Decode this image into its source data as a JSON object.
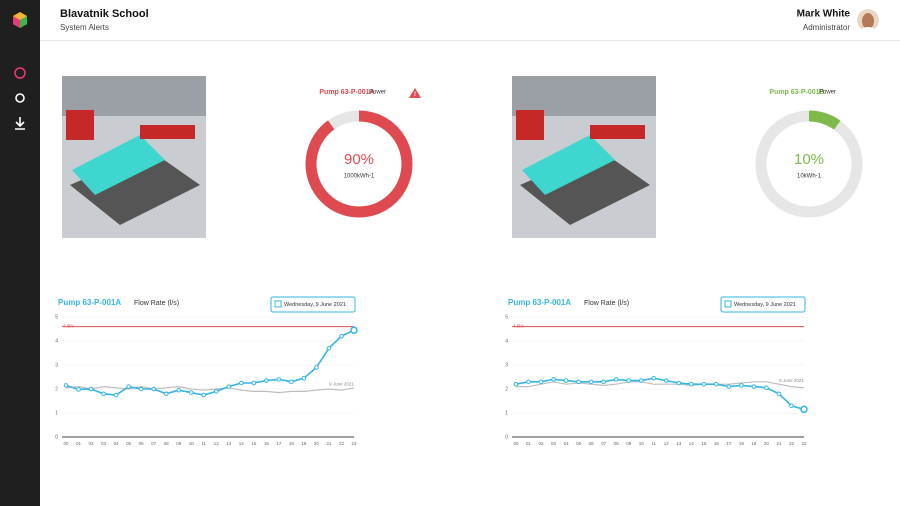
{
  "header": {
    "title": "Blavatnik School",
    "subtitle": "System Alerts",
    "user_name": "Mark White",
    "user_role": "Administrator"
  },
  "panels": [
    {
      "name": "Pump 63-P-001A",
      "metric": "Power",
      "value": 90,
      "value_label": "90%",
      "unit_text": "1000kWh-1",
      "color": "#de4a4f",
      "alert": true
    },
    {
      "name": "Pump 63-P-001B",
      "metric": "Power",
      "value": 10,
      "value_label": "10%",
      "unit_text": "10kWh-1",
      "color": "#7dba4a",
      "alert": false
    }
  ],
  "chart_data": [
    {
      "type": "line",
      "title": "Pump 63-P-001A",
      "subtitle": "Flow Rate (l/s)",
      "date": "Wednesday, 9 June 2021",
      "categories": [
        "00",
        "01",
        "02",
        "03",
        "04",
        "05",
        "06",
        "07",
        "08",
        "09",
        "10",
        "11",
        "12",
        "13",
        "14",
        "15",
        "16",
        "17",
        "18",
        "19",
        "20",
        "21",
        "22",
        "23"
      ],
      "ylim": [
        0,
        5
      ],
      "yticks": [
        0,
        1,
        2,
        3,
        4,
        5
      ],
      "grid": true,
      "threshold": 4.6,
      "threshold_label": "4.6l/s",
      "series": [
        {
          "name": "9 June 2021",
          "color": "#bdbdbd",
          "values": [
            2.05,
            2.1,
            2.0,
            2.1,
            2.05,
            2.0,
            2.1,
            2.0,
            2.05,
            2.1,
            2.0,
            1.95,
            2.0,
            2.05,
            1.95,
            1.9,
            1.9,
            1.85,
            1.9,
            1.9,
            1.95,
            2.0,
            1.95,
            2.05
          ]
        },
        {
          "color": "#33b5e5",
          "values": [
            2.15,
            1.98,
            2.0,
            1.8,
            1.75,
            2.1,
            2.0,
            2.0,
            1.8,
            1.95,
            1.85,
            1.75,
            1.9,
            2.1,
            2.25,
            2.25,
            2.35,
            2.4,
            2.3,
            2.45,
            2.9,
            3.7,
            4.2,
            4.45
          ]
        }
      ]
    },
    {
      "type": "line",
      "title": "Pump 63-P-001A",
      "subtitle": "Flow Rate (l/s)",
      "date": "Wednesday, 9 June 2021",
      "categories": [
        "00",
        "01",
        "02",
        "03",
        "04",
        "05",
        "06",
        "07",
        "08",
        "09",
        "10",
        "11",
        "12",
        "13",
        "14",
        "15",
        "16",
        "17",
        "18",
        "19",
        "20",
        "21",
        "22",
        "23"
      ],
      "ylim": [
        0,
        5
      ],
      "yticks": [
        0,
        1,
        2,
        3,
        4,
        5
      ],
      "grid": true,
      "threshold": 4.6,
      "threshold_label": "4.6l/s",
      "series": [
        {
          "name": "9 June 2021",
          "color": "#bdbdbd",
          "values": [
            2.1,
            2.1,
            2.2,
            2.3,
            2.2,
            2.25,
            2.2,
            2.15,
            2.2,
            2.3,
            2.3,
            2.2,
            2.2,
            2.2,
            2.15,
            2.2,
            2.2,
            2.2,
            2.25,
            2.3,
            2.3,
            2.2,
            2.1,
            2.05
          ]
        },
        {
          "color": "#33b5e5",
          "values": [
            2.2,
            2.3,
            2.3,
            2.4,
            2.35,
            2.3,
            2.3,
            2.3,
            2.4,
            2.35,
            2.35,
            2.45,
            2.35,
            2.25,
            2.2,
            2.2,
            2.2,
            2.1,
            2.15,
            2.1,
            2.05,
            1.8,
            1.3,
            1.15
          ]
        }
      ]
    }
  ]
}
